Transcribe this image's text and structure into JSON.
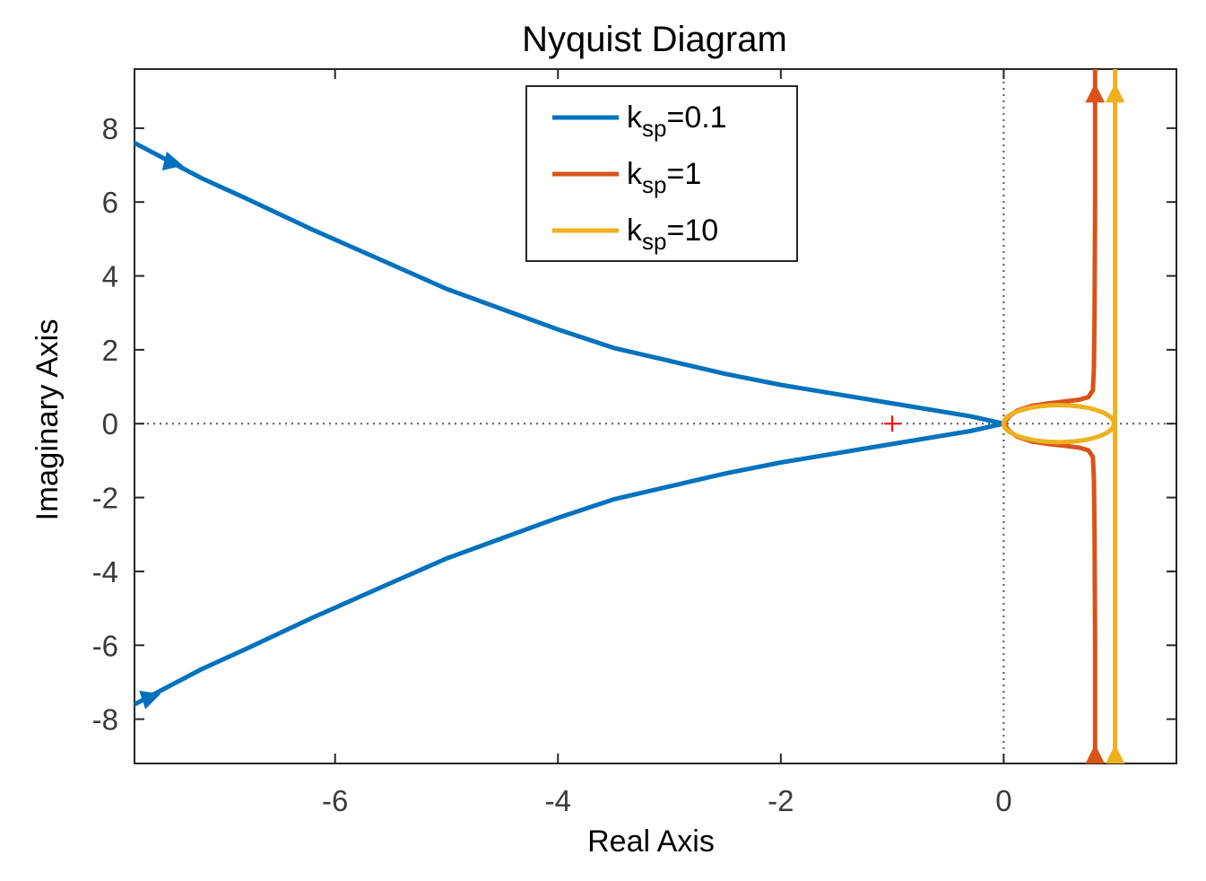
{
  "chart_data": {
    "type": "line",
    "title": "Nyquist Diagram",
    "xlabel": "Real Axis",
    "ylabel": "Imaginary Axis",
    "xlim": [
      -7.8,
      1.55
    ],
    "ylim": [
      -9.2,
      9.6
    ],
    "xticks": [
      -6,
      -4,
      -2,
      0
    ],
    "xtick_labels": [
      "-6",
      "-4",
      "-2",
      "0"
    ],
    "yticks": [
      -8,
      -6,
      -4,
      -2,
      0,
      2,
      4,
      6,
      8
    ],
    "ytick_labels": [
      "-8",
      "-6",
      "-4",
      "-2",
      "0",
      "2",
      "4",
      "6",
      "8"
    ],
    "grid": false,
    "legend_position": "top-center",
    "critical_point": {
      "x": -1,
      "y": 0,
      "marker": "+",
      "color": "#ff0000"
    },
    "series": [
      {
        "name": "k",
        "subscript": "sp",
        "value_label": "=0.1",
        "color": "#0072BD",
        "upper": {
          "x": [
            0,
            -0.3,
            -0.6,
            -1.0,
            -1.5,
            -2.0,
            -2.5,
            -3.0,
            -3.5,
            -4.0,
            -4.5,
            -5.0,
            -5.6,
            -6.2,
            -6.8,
            -7.2,
            -7.8
          ],
          "y": [
            0,
            0.2,
            0.35,
            0.55,
            0.8,
            1.05,
            1.35,
            1.7,
            2.05,
            2.55,
            3.1,
            3.65,
            4.45,
            5.25,
            6.1,
            6.65,
            7.6
          ]
        },
        "lower": {
          "x": [
            0,
            -0.3,
            -0.6,
            -1.0,
            -1.5,
            -2.0,
            -2.5,
            -3.0,
            -3.5,
            -4.0,
            -4.5,
            -5.0,
            -5.6,
            -6.2,
            -6.8,
            -7.2,
            -7.8
          ],
          "y": [
            0,
            -0.2,
            -0.35,
            -0.55,
            -0.8,
            -1.05,
            -1.35,
            -1.7,
            -2.05,
            -2.55,
            -3.1,
            -3.65,
            -4.45,
            -5.25,
            -6.1,
            -6.65,
            -7.6
          ]
        },
        "arrows": [
          {
            "x": -7.45,
            "y": 7.05,
            "toward": [
              -7.25,
              6.9
            ],
            "direction": "down-right"
          },
          {
            "x": -7.65,
            "y": -7.4,
            "toward": [
              -7.45,
              -7.2
            ],
            "direction": "up-right"
          }
        ]
      },
      {
        "name": "k",
        "subscript": "sp",
        "value_label": "=1",
        "color": "#D95319",
        "upper": {
          "x": [
            0,
            0.05,
            0.12,
            0.25,
            0.4,
            0.55,
            0.68,
            0.76,
            0.8,
            0.81,
            0.815,
            0.82,
            0.82
          ],
          "y": [
            0,
            0.2,
            0.35,
            0.48,
            0.55,
            0.6,
            0.65,
            0.72,
            0.9,
            1.5,
            3.0,
            6.0,
            9.6
          ]
        },
        "lower": {
          "x": [
            0,
            0.05,
            0.12,
            0.25,
            0.4,
            0.55,
            0.68,
            0.76,
            0.8,
            0.81,
            0.815,
            0.82,
            0.82
          ],
          "y": [
            0,
            -0.2,
            -0.35,
            -0.48,
            -0.55,
            -0.6,
            -0.65,
            -0.72,
            -0.9,
            -1.5,
            -3.0,
            -6.0,
            -9.2
          ]
        },
        "arrows": [
          {
            "x": 0.82,
            "y": 8.95,
            "toward": [
              0.82,
              9.4
            ],
            "direction": "up"
          },
          {
            "x": 0.82,
            "y": -8.95,
            "toward": [
              0.82,
              -8.5
            ],
            "direction": "up"
          }
        ]
      },
      {
        "name": "k",
        "subscript": "sp",
        "value_label": "=10",
        "color": "#EDB120",
        "ellipse": {
          "cx": 0.495,
          "cy": 0,
          "rx": 0.495,
          "ry": 0.5
        },
        "vertical_x": 1.0,
        "vertical_y": [
          -9.2,
          9.6
        ],
        "arrows": [
          {
            "x": 1.0,
            "y": 8.95,
            "toward": [
              1.0,
              9.4
            ],
            "direction": "up"
          },
          {
            "x": 1.0,
            "y": -8.95,
            "toward": [
              1.0,
              -8.5
            ],
            "direction": "up"
          }
        ]
      }
    ]
  }
}
